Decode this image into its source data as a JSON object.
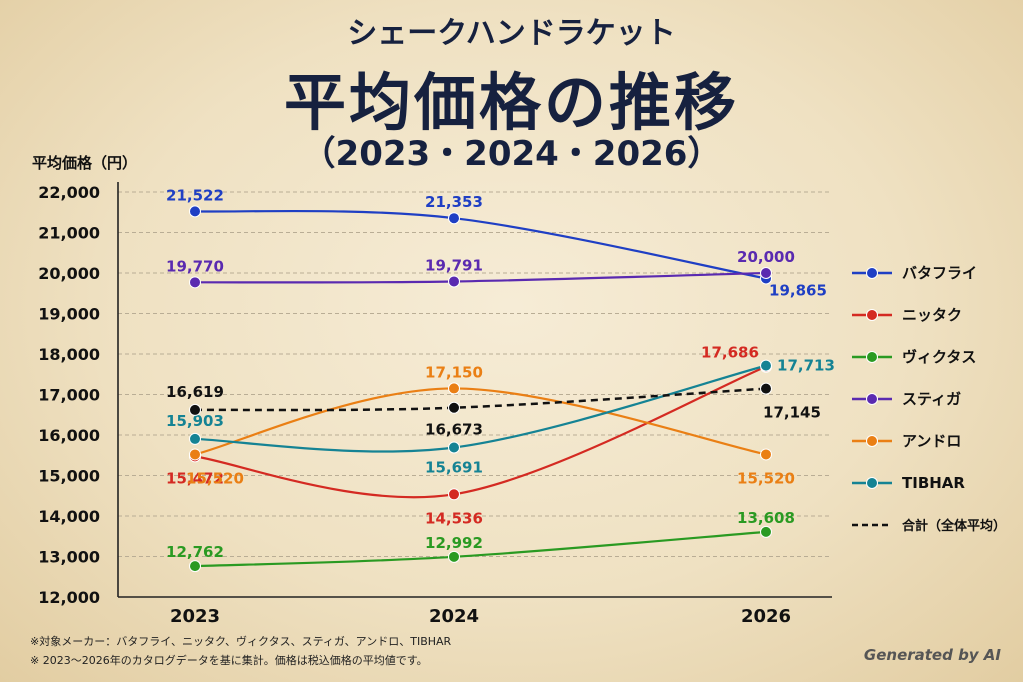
{
  "header": {
    "subtitle": "シェークハンドラケット",
    "title": "平均価格の推移",
    "years": "（2023・2024・2026）"
  },
  "chart_data": {
    "type": "line",
    "ylabel": "平均価格（円）",
    "x": [
      "2023",
      "2024",
      "2026"
    ],
    "ylim": [
      12000,
      22000
    ],
    "yticks": [
      "12,000",
      "13,000",
      "14,000",
      "15,000",
      "16,000",
      "17,000",
      "18,000",
      "19,000",
      "20,000",
      "21,000",
      "22,000"
    ],
    "grid": true,
    "legend_position": "right",
    "series": [
      {
        "name": "バタフライ",
        "color": "#1f3fc4",
        "values": [
          21522,
          21353,
          19865
        ],
        "labels": [
          "21,522",
          "21,353",
          "19,865"
        ]
      },
      {
        "name": "ニッタク",
        "color": "#d42a22",
        "values": [
          15472,
          14536,
          17686
        ],
        "labels": [
          "15,472",
          "14,536",
          "17,686"
        ]
      },
      {
        "name": "ヴィクタス",
        "color": "#2a9a22",
        "values": [
          12762,
          12992,
          13608
        ],
        "labels": [
          "12,762",
          "12,992",
          "13,608"
        ]
      },
      {
        "name": "スティガ",
        "color": "#5a2ab0",
        "values": [
          19770,
          19791,
          20000
        ],
        "labels": [
          "19,770",
          "19,791",
          "20,000"
        ]
      },
      {
        "name": "アンドロ",
        "color": "#ea7f14",
        "values": [
          15520,
          17150,
          15520
        ],
        "labels": [
          "15,520",
          "17,150",
          "15,520"
        ]
      },
      {
        "name": "TIBHAR",
        "color": "#158394",
        "values": [
          15903,
          15691,
          17713
        ],
        "labels": [
          "15,903",
          "15,691",
          "17,713"
        ]
      },
      {
        "name": "合計（全体平均）",
        "color": "#111111",
        "dashed": true,
        "values": [
          16619,
          16673,
          17145
        ],
        "labels": [
          "16,619",
          "16,673",
          "17,145"
        ]
      }
    ]
  },
  "notes": {
    "line1": "※対象メーカー：バタフライ、ニッタク、ヴィクタス、スティガ、アンドロ、TIBHAR",
    "line2": "※ 2023〜2026年のカタログデータを基に集計。価格は税込価格の平均値です。"
  },
  "credit": "Generated by AI"
}
